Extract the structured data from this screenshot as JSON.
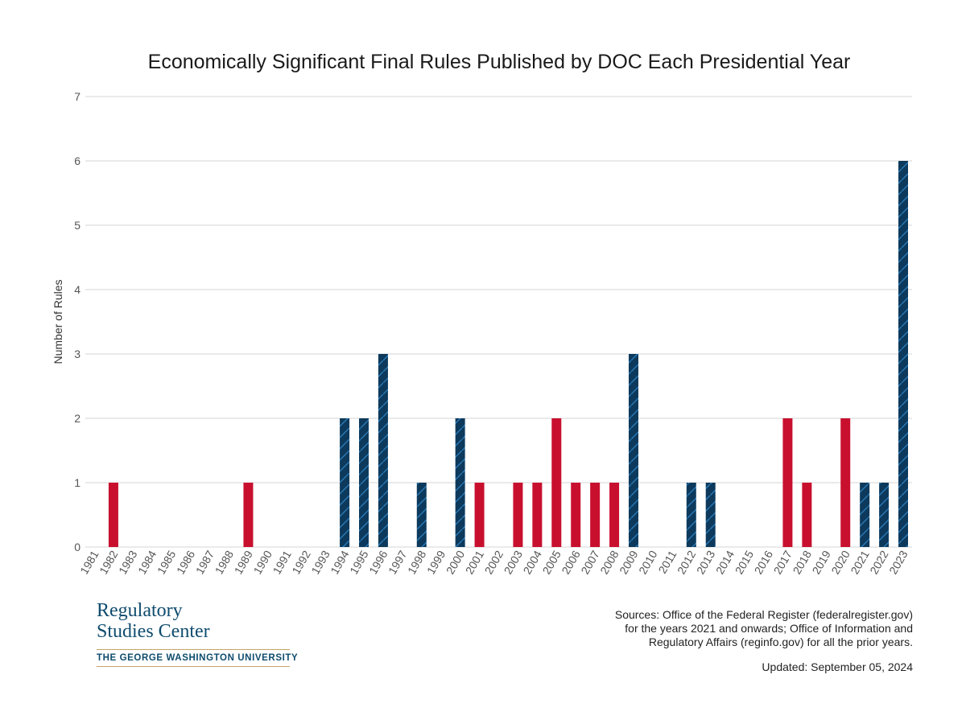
{
  "colors": {
    "democrat": "#0d3a5c",
    "republican": "#c8102e",
    "hatch": "#2b7fc0",
    "grid": "#dddddd"
  },
  "chart_data": {
    "type": "bar",
    "title": "Economically Significant Final Rules Published by DOC Each Presidential Year",
    "xlabel": "",
    "ylabel": "Number of Rules",
    "ylim": [
      0,
      7
    ],
    "yticks": [
      0,
      1,
      2,
      3,
      4,
      5,
      6,
      7
    ],
    "grid": true,
    "categories": [
      "1981",
      "1982",
      "1983",
      "1984",
      "1985",
      "1986",
      "1987",
      "1988",
      "1989",
      "1990",
      "1991",
      "1992",
      "1993",
      "1994",
      "1995",
      "1996",
      "1997",
      "1998",
      "1999",
      "2000",
      "2001",
      "2002",
      "2003",
      "2004",
      "2005",
      "2006",
      "2007",
      "2008",
      "2009",
      "2010",
      "2011",
      "2012",
      "2013",
      "2014",
      "2015",
      "2016",
      "2017",
      "2018",
      "2019",
      "2020",
      "2021",
      "2022",
      "2023"
    ],
    "values": [
      0,
      1,
      0,
      0,
      0,
      0,
      0,
      0,
      1,
      0,
      0,
      0,
      0,
      2,
      2,
      3,
      0,
      1,
      0,
      2,
      1,
      0,
      1,
      1,
      2,
      1,
      1,
      1,
      3,
      0,
      0,
      1,
      1,
      0,
      0,
      0,
      2,
      1,
      0,
      2,
      1,
      1,
      6
    ],
    "party": [
      "R",
      "R",
      "R",
      "R",
      "R",
      "R",
      "R",
      "R",
      "R",
      "R",
      "R",
      "R",
      "D",
      "D",
      "D",
      "D",
      "D",
      "D",
      "D",
      "D",
      "R",
      "R",
      "R",
      "R",
      "R",
      "R",
      "R",
      "R",
      "D",
      "D",
      "D",
      "D",
      "D",
      "D",
      "D",
      "D",
      "R",
      "R",
      "R",
      "R",
      "D",
      "D",
      "D"
    ]
  },
  "logo": {
    "line1": "Regulatory",
    "line2": "Studies Center",
    "university": "THE GEORGE WASHINGTON UNIVERSITY"
  },
  "sources": {
    "line1": "Sources: Office of the Federal Register (federalregister.gov)",
    "line2": "for the years 2021 and onwards; Office of Information and",
    "line3": "Regulatory Affairs (reginfo.gov) for all the prior years."
  },
  "updated": "Updated: September 05, 2024"
}
